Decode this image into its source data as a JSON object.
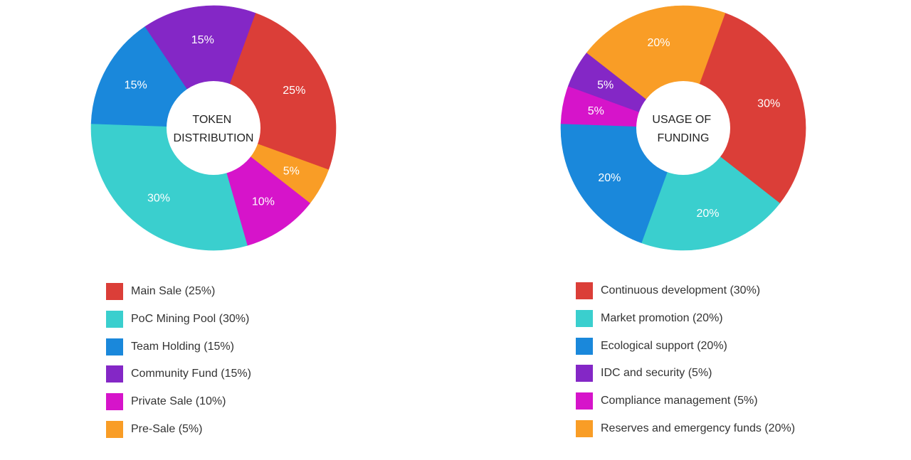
{
  "colors": {
    "red": "#DB3E38",
    "teal": "#3ACFCE",
    "blue": "#1A88DB",
    "purple": "#8427C6",
    "magenta": "#D614CA",
    "orange": "#F99D26",
    "hole": "#ffffff",
    "title_text": "#222222"
  },
  "chart_data": [
    {
      "type": "pie",
      "donut": true,
      "title": [
        "TOKEN",
        "DISTRIBUTION"
      ],
      "start_angle_deg": 20,
      "slice_labels_shown": true,
      "legend_position": "bottom",
      "categories": [
        "Main Sale",
        "PoC Mining Pool",
        "Team Holding",
        "Community Fund",
        "Private Sale",
        "Pre-Sale"
      ],
      "slice_order_clockwise": [
        "Main Sale",
        "Pre-Sale",
        "Private Sale",
        "PoC Mining Pool",
        "Team Holding",
        "Community Fund"
      ],
      "slices": [
        {
          "name": "Main Sale",
          "value": 25,
          "label": "25%",
          "color": "#DB3E38"
        },
        {
          "name": "Pre-Sale",
          "value": 5,
          "label": "5%",
          "color": "#F99D26"
        },
        {
          "name": "Private Sale",
          "value": 10,
          "label": "10%",
          "color": "#D614CA"
        },
        {
          "name": "PoC Mining Pool",
          "value": 30,
          "label": "30%",
          "color": "#3ACFCE"
        },
        {
          "name": "Team Holding",
          "value": 15,
          "label": "15%",
          "color": "#1A88DB"
        },
        {
          "name": "Community Fund",
          "value": 15,
          "label": "15%",
          "color": "#8427C6"
        }
      ],
      "legend": [
        {
          "label": "Main Sale (25%)",
          "color": "#DB3E38"
        },
        {
          "label": "PoC Mining Pool (30%)",
          "color": "#3ACFCE"
        },
        {
          "label": "Team Holding (15%)",
          "color": "#1A88DB"
        },
        {
          "label": "Community Fund (15%)",
          "color": "#8427C6"
        },
        {
          "label": "Private Sale (10%)",
          "color": "#D614CA"
        },
        {
          "label": "Pre-Sale (5%)",
          "color": "#F99D26"
        }
      ]
    },
    {
      "type": "pie",
      "donut": true,
      "title": [
        "USAGE OF",
        "FUNDING"
      ],
      "start_angle_deg": 20,
      "slice_labels_shown": true,
      "legend_position": "bottom",
      "categories": [
        "Continuous development",
        "Market promotion",
        "Ecological support",
        "IDC and security",
        "Compliance management",
        "Reserves and emergency funds"
      ],
      "slice_order_clockwise": [
        "Continuous development",
        "Market promotion",
        "Ecological support",
        "Compliance management",
        "IDC and security",
        "Reserves and emergency funds"
      ],
      "slices": [
        {
          "name": "Continuous development",
          "value": 30,
          "label": "30%",
          "color": "#DB3E38"
        },
        {
          "name": "Market promotion",
          "value": 20,
          "label": "20%",
          "color": "#3ACFCE"
        },
        {
          "name": "Ecological support",
          "value": 20,
          "label": "20%",
          "color": "#1A88DB"
        },
        {
          "name": "Compliance management",
          "value": 5,
          "label": "5%",
          "color": "#D614CA"
        },
        {
          "name": "IDC and security",
          "value": 5,
          "label": "5%",
          "color": "#8427C6"
        },
        {
          "name": "Reserves and emergency funds",
          "value": 20,
          "label": "20%",
          "color": "#F99D26"
        }
      ],
      "legend": [
        {
          "label": "Continuous development (30%)",
          "color": "#DB3E38"
        },
        {
          "label": "Market promotion (20%)",
          "color": "#3ACFCE"
        },
        {
          "label": "Ecological support (20%)",
          "color": "#1A88DB"
        },
        {
          "label": "IDC and security (5%)",
          "color": "#8427C6"
        },
        {
          "label": "Compliance management (5%)",
          "color": "#D614CA"
        },
        {
          "label": "Reserves and emergency funds (20%)",
          "color": "#F99D26"
        }
      ]
    }
  ]
}
